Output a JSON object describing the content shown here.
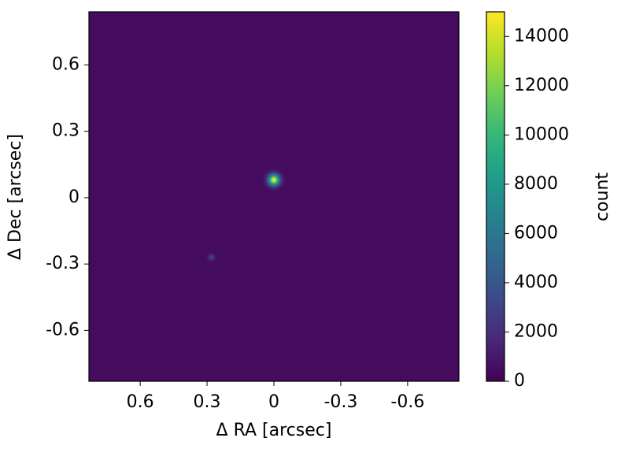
{
  "chart_data": {
    "type": "image",
    "xlabel": "Δ RA [arcsec]",
    "ylabel": "Δ Dec [arcsec]",
    "colorbar_label": "count",
    "colormap": "viridis",
    "xlim": [
      0.83,
      -0.83
    ],
    "ylim": [
      -0.83,
      0.84
    ],
    "xticks": [
      0.6,
      0.3,
      0,
      -0.3,
      -0.6
    ],
    "yticks": [
      -0.6,
      -0.3,
      0,
      0.3,
      0.6
    ],
    "clim": [
      0,
      15000
    ],
    "cticks": [
      0,
      2000,
      4000,
      6000,
      8000,
      10000,
      12000,
      14000
    ],
    "sources": {
      "x": [
        0.0,
        0.28
      ],
      "y": [
        0.08,
        -0.27
      ],
      "values": [
        15000,
        2500
      ]
    }
  }
}
